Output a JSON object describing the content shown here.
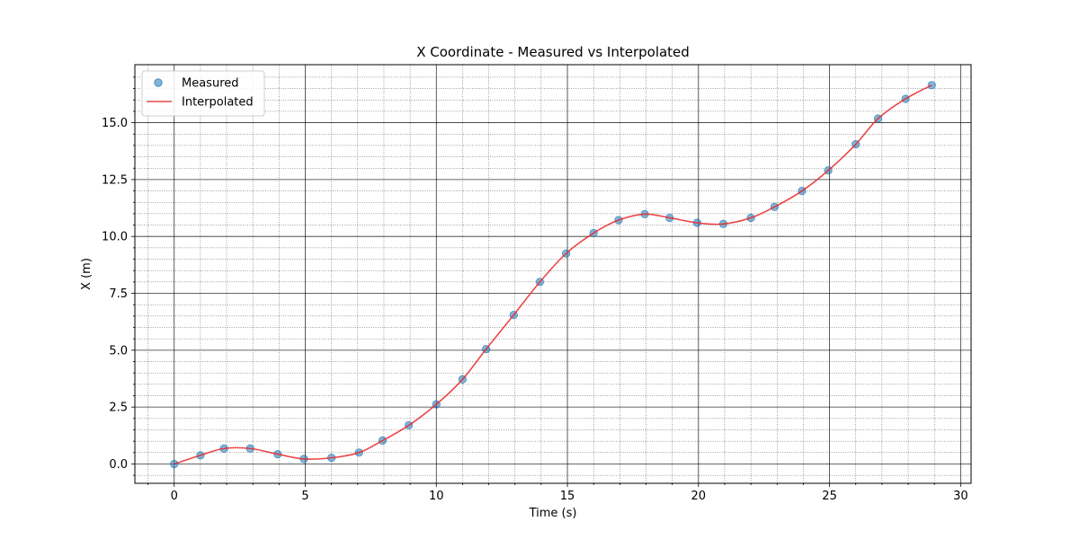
{
  "chart_data": {
    "type": "line",
    "title": "X Coordinate - Measured vs Interpolated",
    "xlabel": "Time (s)",
    "ylabel": "X (m)",
    "xlim": [
      -1.5,
      30.4
    ],
    "ylim": [
      -0.85,
      17.55
    ],
    "xticks": [
      0,
      5,
      10,
      15,
      20,
      25,
      30
    ],
    "yticks": [
      0.0,
      2.5,
      5.0,
      7.5,
      10.0,
      12.5,
      15.0
    ],
    "xtick_labels": [
      "0",
      "5",
      "10",
      "15",
      "20",
      "25",
      "30"
    ],
    "ytick_labels": [
      "0.0",
      "2.5",
      "5.0",
      "7.5",
      "10.0",
      "12.5",
      "15.0"
    ],
    "grid": {
      "major": true,
      "minor": true
    },
    "legend_position": "top-left",
    "series": [
      {
        "name": "Measured",
        "kind": "scatter",
        "color": "#1f77b4",
        "x": [
          0,
          1,
          1.9,
          2.9,
          3.95,
          4.95,
          6,
          7.05,
          7.95,
          8.95,
          10,
          11,
          11.9,
          12.95,
          13.95,
          14.95,
          16,
          16.95,
          17.95,
          18.9,
          19.95,
          20.95,
          22,
          22.9,
          23.95,
          24.95,
          26,
          26.85,
          27.9,
          28.9
        ],
        "y": [
          0.0,
          0.38,
          0.68,
          0.68,
          0.43,
          0.22,
          0.27,
          0.5,
          1.03,
          1.7,
          2.62,
          3.72,
          5.05,
          6.55,
          8.0,
          9.25,
          10.15,
          10.72,
          10.98,
          10.82,
          10.6,
          10.55,
          10.82,
          11.3,
          12.0,
          12.9,
          14.05,
          15.18,
          16.05,
          16.65
        ]
      },
      {
        "name": "Interpolated",
        "kind": "line",
        "color": "#e8282b",
        "x": [
          0,
          1,
          1.9,
          2.9,
          3.95,
          4.95,
          6,
          7.05,
          7.95,
          8.95,
          10,
          11,
          11.9,
          12.95,
          13.95,
          14.95,
          16,
          16.95,
          17.95,
          18.9,
          19.95,
          20.95,
          22,
          22.9,
          23.95,
          24.95,
          26,
          26.85,
          27.9,
          28.9
        ],
        "y": [
          0.0,
          0.38,
          0.68,
          0.68,
          0.43,
          0.22,
          0.27,
          0.5,
          1.03,
          1.7,
          2.62,
          3.72,
          5.05,
          6.55,
          8.0,
          9.25,
          10.15,
          10.72,
          10.98,
          10.82,
          10.6,
          10.55,
          10.82,
          11.3,
          12.0,
          12.9,
          14.05,
          15.18,
          16.05,
          16.65
        ]
      }
    ]
  }
}
